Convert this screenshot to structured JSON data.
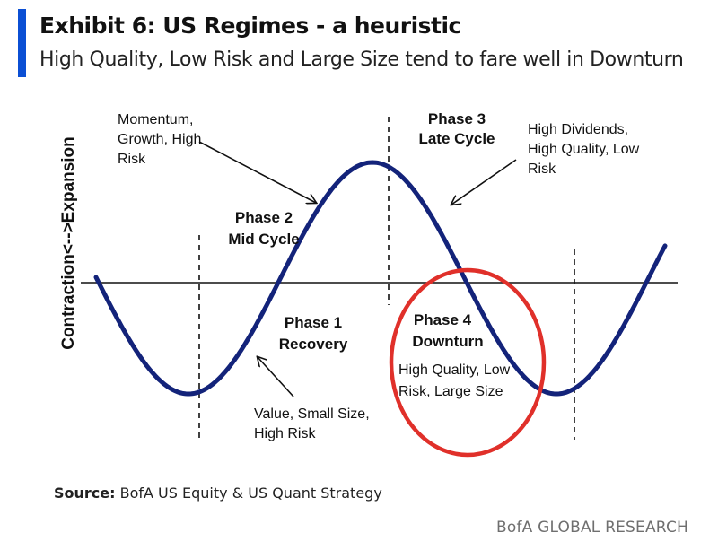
{
  "header": {
    "title": "Exhibit 6: US Regimes - a heuristic",
    "subtitle": "High Quality, Low Risk and Large Size tend to fare well in Downturn"
  },
  "diagram": {
    "y_axis_label": "Contraction<-->Expansion",
    "phases": [
      {
        "name": "Phase 1",
        "stage": "Recovery"
      },
      {
        "name": "Phase 2",
        "stage": "Mid Cycle"
      },
      {
        "name": "Phase 3",
        "stage": "Late Cycle"
      },
      {
        "name": "Phase 4",
        "stage": "Downturn"
      }
    ],
    "annotations": {
      "recovery_factors": [
        "Value, Small Size,",
        "High Risk"
      ],
      "midcycle_factors": [
        "Momentum,",
        "Growth, High",
        "Risk"
      ],
      "latecycle_factors": [
        "High Dividends,",
        "High Quality, Low",
        "Risk"
      ],
      "downturn_factors": [
        "High Quality, Low",
        "Risk, Large Size"
      ]
    },
    "colors": {
      "curve": "#13237a",
      "highlight_circle": "#e0302a",
      "accent": "#0b4fd4"
    }
  },
  "footer": {
    "source_label": "Source:",
    "source_text": "BofA US Equity & US Quant Strategy",
    "brand": "BofA GLOBAL RESEARCH"
  }
}
